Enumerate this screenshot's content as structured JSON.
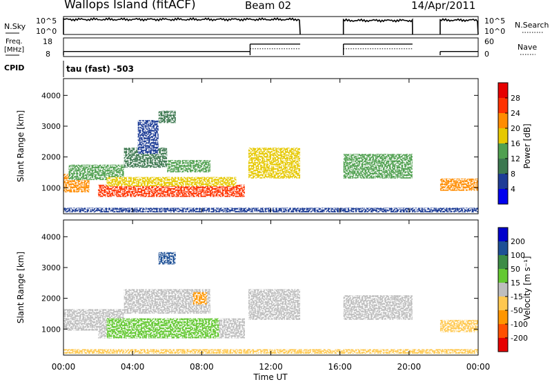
{
  "header": {
    "station": "Wallops Island (fitACF)",
    "beam": "Beam 02",
    "date": "14/Apr/2011"
  },
  "top_panels": {
    "nsky_label": "N.Sky",
    "nsearch_label": "N.Search",
    "noise_ticks": [
      "10^5",
      "10^0"
    ],
    "freq_label": "Freq.",
    "freq_unit": "[MHz]",
    "freq_ticks": [
      "18",
      "8"
    ],
    "nave_label": "Nave",
    "nave_ticks": [
      "60",
      "0"
    ],
    "cpid_label": "CPID",
    "cpid_text": "tau (fast) -503"
  },
  "axes": {
    "ylabel": "Slant Range [km]",
    "yticks": [
      "4000",
      "3000",
      "2000",
      "1000"
    ],
    "xlabel": "Time UT",
    "xticks": [
      "00:00",
      "04:00",
      "08:00",
      "12:00",
      "16:00",
      "20:00",
      "00:00"
    ]
  },
  "colors": {
    "power": [
      "#0000ee",
      "#1e3c96",
      "#3c7850",
      "#50a050",
      "#e6c800",
      "#ff8c00",
      "#ff3200",
      "#e60000"
    ],
    "velocity": [
      "#e60000",
      "#ff5000",
      "#ff9600",
      "#ffc850",
      "#bebebe",
      "#64c832",
      "#3c8c46",
      "#1e5096",
      "#0000cc"
    ]
  },
  "power_scale": {
    "label": "Power [dB]",
    "ticks": [
      "28",
      "24",
      "20",
      "16",
      "12",
      "8",
      "4"
    ]
  },
  "velocity_scale": {
    "label": "Velocity [m s⁻¹]",
    "ticks": [
      "200",
      "100",
      "50",
      "15",
      "-15",
      "-50",
      "-100",
      "-200"
    ]
  },
  "chart_data": [
    {
      "type": "line",
      "title": "N.Sky / N.Search",
      "x_unit": "hours UT",
      "xlim": [
        0,
        24
      ],
      "ylim": [
        0,
        5
      ],
      "y_scale": "log10",
      "segments": [
        {
          "x": [
            0,
            13.7
          ],
          "y_log": 4.2
        },
        {
          "x": [
            16.2,
            20.2
          ],
          "y_log": 3.9
        },
        {
          "x": [
            21.8,
            24
          ],
          "y_log": 4.0
        }
      ]
    },
    {
      "type": "line",
      "title": "Freq. / Nave",
      "x_unit": "hours UT",
      "xlim": [
        0,
        24
      ],
      "freq_mhz": [
        {
          "x": [
            0,
            10.8
          ],
          "y": 10.3
        },
        {
          "x": [
            10.8,
            13.7
          ],
          "y": 15.0
        },
        {
          "x": [
            16.2,
            20.2
          ],
          "y": 15.0
        },
        {
          "x": [
            21.8,
            24
          ],
          "y": 10.3
        }
      ],
      "nave": [
        {
          "x": [
            10.8,
            13.7
          ],
          "y": 24
        },
        {
          "x": [
            16.2,
            20.2
          ],
          "y": 24
        }
      ]
    },
    {
      "type": "heatmap",
      "title": "Power",
      "x_unit": "hours UT",
      "xlim": [
        0,
        24
      ],
      "ylim": [
        200,
        4500
      ],
      "zlim": [
        0,
        32
      ],
      "regions": [
        {
          "x": [
            0,
            1.5
          ],
          "y": [
            850,
            1450
          ],
          "z": 22
        },
        {
          "x": [
            0.3,
            3.5
          ],
          "y": [
            1250,
            1750
          ],
          "z": 14
        },
        {
          "x": [
            3.5,
            6
          ],
          "y": [
            1650,
            2300
          ],
          "z": 9
        },
        {
          "x": [
            6,
            8.5
          ],
          "y": [
            1500,
            1900
          ],
          "z": 12
        },
        {
          "x": [
            2,
            10.5
          ],
          "y": [
            700,
            1100
          ],
          "z": 26
        },
        {
          "x": [
            2.5,
            10
          ],
          "y": [
            1050,
            1350
          ],
          "z": 16
        },
        {
          "x": [
            5.5,
            6.5
          ],
          "y": [
            3100,
            3500
          ],
          "z": 10
        },
        {
          "x": [
            4.3,
            5.5
          ],
          "y": [
            2100,
            3200
          ],
          "z": 7
        },
        {
          "x": [
            10.7,
            13.7
          ],
          "y": [
            1300,
            2300
          ],
          "z": 17
        },
        {
          "x": [
            16.2,
            20.2
          ],
          "y": [
            1300,
            2100
          ],
          "z": 15
        },
        {
          "x": [
            21.8,
            24
          ],
          "y": [
            900,
            1300
          ],
          "z": 21
        },
        {
          "x": [
            0,
            24
          ],
          "y": [
            200,
            350
          ],
          "z": 6
        }
      ]
    },
    {
      "type": "heatmap",
      "title": "Velocity",
      "x_unit": "hours UT",
      "xlim": [
        0,
        24
      ],
      "ylim": [
        200,
        4500
      ],
      "zlim": [
        -250,
        250
      ],
      "regions": [
        {
          "x": [
            0,
            3.5
          ],
          "y": [
            950,
            1650
          ],
          "z": 0
        },
        {
          "x": [
            3.5,
            8.5
          ],
          "y": [
            1500,
            2300
          ],
          "z": 0
        },
        {
          "x": [
            2,
            10.5
          ],
          "y": [
            700,
            1350
          ],
          "z": 0
        },
        {
          "x": [
            2.5,
            9
          ],
          "y": [
            700,
            1350
          ],
          "z": 25
        },
        {
          "x": [
            7.5,
            8.3
          ],
          "y": [
            1800,
            2200
          ],
          "z": -60
        },
        {
          "x": [
            5.5,
            6.5
          ],
          "y": [
            3100,
            3500
          ],
          "z": 150
        },
        {
          "x": [
            10.7,
            13.7
          ],
          "y": [
            1300,
            2300
          ],
          "z": 0
        },
        {
          "x": [
            16.2,
            20.2
          ],
          "y": [
            1300,
            2100
          ],
          "z": 0
        },
        {
          "x": [
            21.8,
            24
          ],
          "y": [
            900,
            1300
          ],
          "z": -40
        },
        {
          "x": [
            0,
            24
          ],
          "y": [
            200,
            350
          ],
          "z": -30
        }
      ]
    }
  ]
}
